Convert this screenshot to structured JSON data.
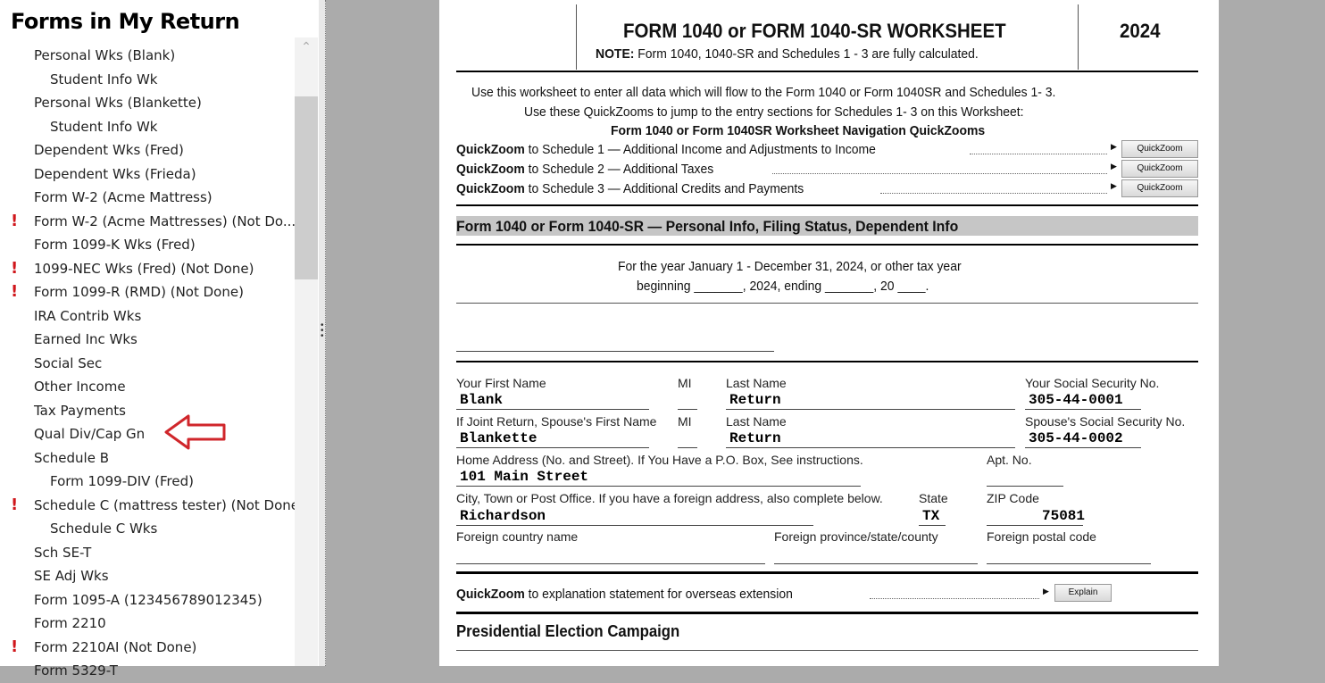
{
  "sidebar": {
    "title": "Forms in My Return",
    "items": [
      {
        "label": "Personal Wks (Blank)",
        "level": 1,
        "warn": false
      },
      {
        "label": "Student Info Wk",
        "level": 2,
        "warn": false
      },
      {
        "label": "Personal Wks (Blankette)",
        "level": 1,
        "warn": false
      },
      {
        "label": "Student Info Wk",
        "level": 2,
        "warn": false
      },
      {
        "label": "Dependent Wks (Fred)",
        "level": 1,
        "warn": false
      },
      {
        "label": "Dependent Wks (Frieda)",
        "level": 1,
        "warn": false
      },
      {
        "label": "Form W-2 (Acme Mattress)",
        "level": 1,
        "warn": false
      },
      {
        "label": "Form W-2 (Acme Mattresses) (Not Do...",
        "level": 1,
        "warn": true
      },
      {
        "label": "Form 1099-K Wks (Fred)",
        "level": 1,
        "warn": false
      },
      {
        "label": "1099-NEC Wks (Fred) (Not Done)",
        "level": 1,
        "warn": true
      },
      {
        "label": "Form 1099-R (RMD) (Not Done)",
        "level": 1,
        "warn": true
      },
      {
        "label": "IRA Contrib Wks",
        "level": 1,
        "warn": false
      },
      {
        "label": "Earned Inc Wks",
        "level": 1,
        "warn": false
      },
      {
        "label": "Social Sec",
        "level": 1,
        "warn": false
      },
      {
        "label": "Other Income",
        "level": 1,
        "warn": false
      },
      {
        "label": "Tax Payments",
        "level": 1,
        "warn": false
      },
      {
        "label": "Qual Div/Cap Gn",
        "level": 1,
        "warn": false
      },
      {
        "label": "Schedule B",
        "level": 1,
        "warn": false
      },
      {
        "label": "Form 1099-DIV (Fred)",
        "level": 2,
        "warn": false
      },
      {
        "label": "Schedule C (mattress tester) (Not Done)",
        "level": 1,
        "warn": true
      },
      {
        "label": "Schedule C Wks",
        "level": 2,
        "warn": false
      },
      {
        "label": "Sch SE-T",
        "level": 1,
        "warn": false
      },
      {
        "label": "SE Adj Wks",
        "level": 1,
        "warn": false
      },
      {
        "label": "Form 1095-A (123456789012345)",
        "level": 1,
        "warn": false
      },
      {
        "label": "Form 2210",
        "level": 1,
        "warn": false
      },
      {
        "label": "Form 2210AI (Not Done)",
        "level": 1,
        "warn": true
      },
      {
        "label": "Form 5329-T",
        "level": 1,
        "warn": false
      }
    ],
    "warn_icon": "!",
    "warn_color": "#d0161b",
    "annotation_arrow_color": "#d0262b"
  },
  "form": {
    "title_a": "FORM 1040 or  FORM 1040-SR WORKSHEET",
    "year": "2024",
    "note_label": "NOTE:",
    "note": " Form 1040, 1040-SR and Schedules 1 - 3 are fully calculated.",
    "intro1": "Use this worksheet to enter all data which will flow to the Form 1040 or Form 1040SR and Schedules 1- 3.",
    "intro2": "Use these QuickZooms to jump to the entry sections for Schedules 1- 3 on this Worksheet:",
    "nav_title": "Form 1040 or Form 1040SR Worksheet Navigation QuickZooms",
    "qz_label": "QuickZoom",
    "qz_rows": [
      {
        "text": " to Schedule 1 — Additional Income and Adjustments to Income",
        "button": "QuickZoom"
      },
      {
        "text": " to Schedule 2 — Additional Taxes",
        "button": "QuickZoom"
      },
      {
        "text": " to Schedule 3 — Additional Credits and Payments",
        "button": "QuickZoom"
      }
    ],
    "section_title": "Form 1040 or Form 1040-SR — Personal Info, Filing Status, Dependent Info",
    "year_line1": "For the year January 1 - December 31, 2024, or other tax year",
    "year_line2": "beginning   _______,  2024, ending   _______, 20   ____.",
    "fields": {
      "first_name_label": "Your First Name",
      "mi_label": "MI",
      "last_name_label": "Last Name",
      "ssn_label": "Your Social Security No.",
      "first_name": "Blank",
      "last_name": "Return",
      "ssn": "305-44-0001",
      "sp_first_label": "If Joint Return, Spouse's First Name",
      "sp_mi_label": "MI",
      "sp_last_label": "Last Name",
      "sp_ssn_label": "Spouse's Social Security No.",
      "sp_first": "Blankette",
      "sp_last": "Return",
      "sp_ssn": "305-44-0002",
      "address_label": "Home Address (No. and Street). If You Have a P.O. Box, See instructions.",
      "apt_label": "Apt.  No.",
      "address": "101 Main Street",
      "city_label": "City, Town or Post Office. If you have a foreign address, also complete below.",
      "state_label": "State",
      "zip_label": "ZIP Code",
      "city": "Richardson",
      "state": "TX",
      "zip": "75081",
      "fcountry_label": "Foreign country name",
      "fprov_label": "Foreign province/state/county",
      "fpostal_label": "Foreign postal code"
    },
    "overseas_text": " to explanation statement for overseas extension",
    "explain_button": "Explain",
    "pec_title": "Presidential Election Campaign"
  }
}
